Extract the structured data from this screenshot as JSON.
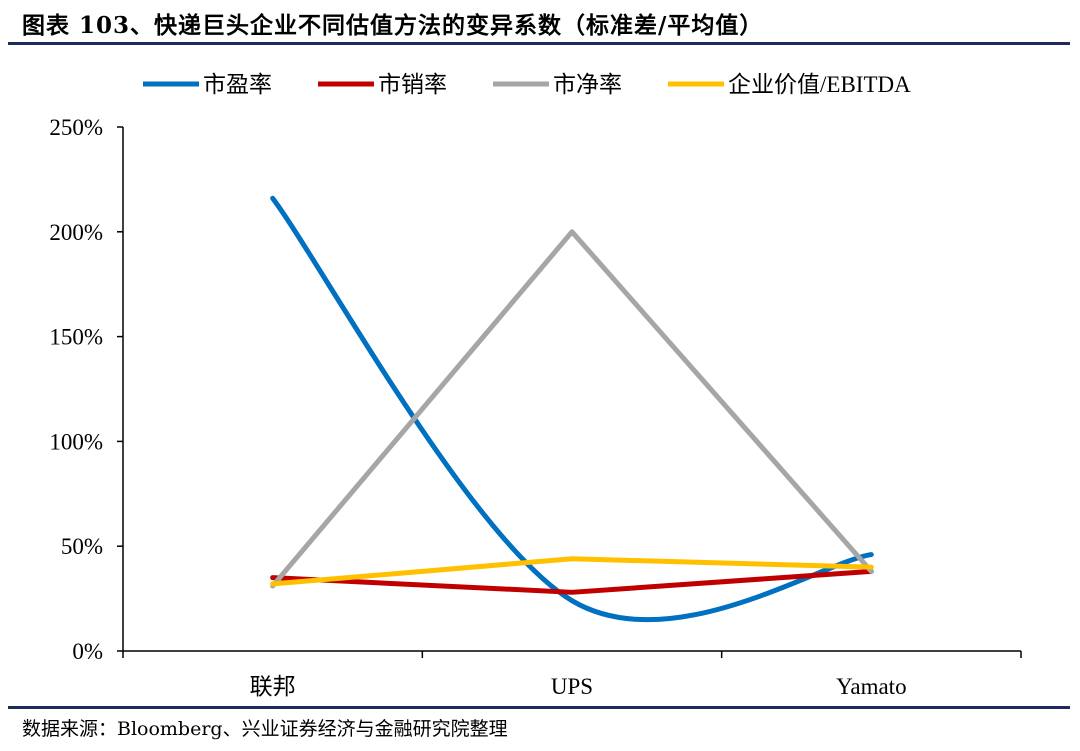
{
  "title": "图表 103、快递巨头企业不同估值方法的变异系数（标准差/平均值）",
  "source": "数据来源：Bloomberg、兴业证券经济与金融研究院整理",
  "chart_data": {
    "type": "line",
    "categories": [
      "联邦",
      "UPS",
      "Yamato"
    ],
    "ylim": [
      0,
      2.5
    ],
    "yticks": [
      0,
      0.5,
      1.0,
      1.5,
      2.0,
      2.5
    ],
    "ytick_labels": [
      "0%",
      "50%",
      "100%",
      "150%",
      "200%",
      "250%"
    ],
    "legend_position": "top",
    "grid": false,
    "series": [
      {
        "name": "市盈率",
        "color": "#0070c0",
        "smooth": true,
        "values": [
          2.16,
          0.24,
          0.46
        ]
      },
      {
        "name": "市销率",
        "color": "#c00000",
        "smooth": false,
        "values": [
          0.35,
          0.28,
          0.38
        ]
      },
      {
        "name": "市净率",
        "color": "#a6a6a6",
        "smooth": false,
        "values": [
          0.31,
          2.0,
          0.38
        ]
      },
      {
        "name": "企业价值/EBITDA",
        "color": "#ffc000",
        "smooth": false,
        "values": [
          0.32,
          0.44,
          0.4
        ]
      }
    ]
  }
}
